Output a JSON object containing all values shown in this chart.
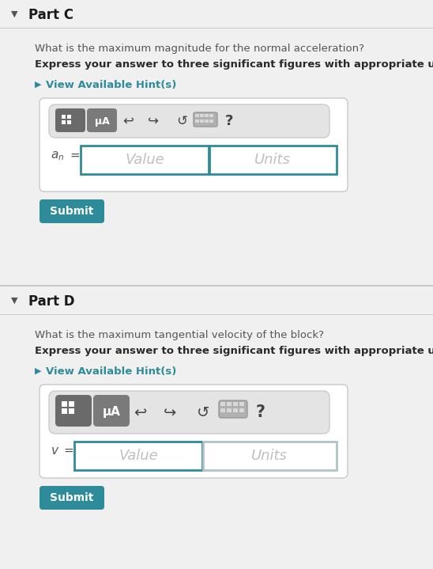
{
  "bg_color": "#f0f0f0",
  "white": "#ffffff",
  "teal": "#2e8b9a",
  "teal_dark": "#1e7a88",
  "gray_header": "#e8e8e8",
  "gray_border": "#cccccc",
  "gray_toolbar": "#e2e2e2",
  "gray_btn1": "#6d6d6d",
  "gray_btn2": "#7a7a7a",
  "text_dark": "#2a2a2a",
  "text_medium": "#555555",
  "text_light": "#aaaaaa",
  "separator": "#d0d0d0",
  "part_c_label": "Part C",
  "part_d_label": "Part D",
  "part_c_question": "What is the maximum magnitude for the normal acceleration?",
  "part_c_bold": "Express your answer to three significant figures with appropriate units.",
  "part_d_question": "What is the maximum tangential velocity of the block?",
  "part_d_bold": "Express your answer to three significant figures with appropriate units.",
  "hint_text": "View Available Hint(s)",
  "submit_text": "Submit",
  "value_placeholder": "Value",
  "units_placeholder": "Units",
  "figw": 5.48,
  "figh": 7.19,
  "dpi": 100
}
